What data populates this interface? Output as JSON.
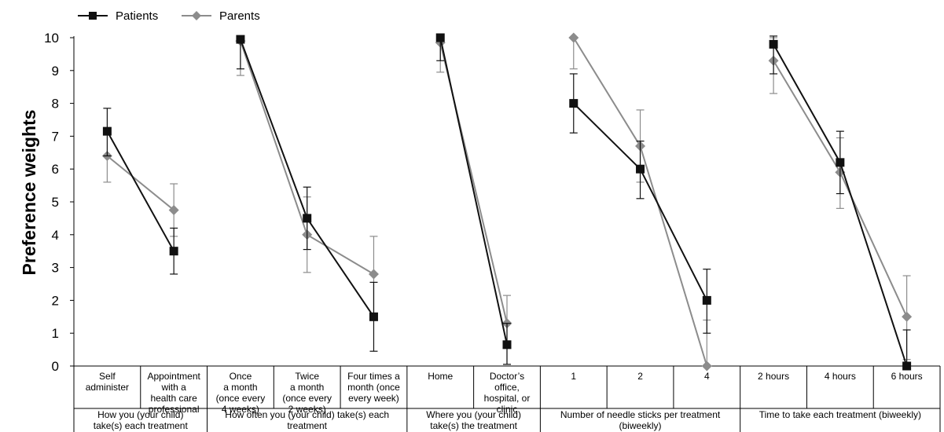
{
  "chart_data": {
    "type": "line",
    "ylabel": "Preference weights",
    "ylim": [
      0,
      10
    ],
    "yticks": [
      "0",
      "1",
      "2",
      "3",
      "4",
      "5",
      "6",
      "7",
      "8",
      "9",
      "10"
    ],
    "legend_position": "top-left",
    "categories": [
      [
        "Self",
        "administer"
      ],
      [
        "Appointment",
        "with a",
        "health care",
        "professional"
      ],
      [
        "Once",
        "a month",
        "(once every",
        "4 weeks)"
      ],
      [
        "Twice",
        "a month",
        "(once every",
        "2 weeks)"
      ],
      [
        "Four times a",
        "month (once",
        "every week)"
      ],
      [
        "Home"
      ],
      [
        "Doctor’s",
        "office,",
        "hospital, or",
        "clinic"
      ],
      [
        "1"
      ],
      [
        "2"
      ],
      [
        "4"
      ],
      [
        "2 hours"
      ],
      [
        "4 hours"
      ],
      [
        "6 hours"
      ]
    ],
    "groups": [
      {
        "label": [
          "How you (your child)",
          "take(s) each treatment"
        ],
        "start": 0,
        "end": 1
      },
      {
        "label": [
          "How often you (your child) take(s) each",
          "treatment"
        ],
        "start": 2,
        "end": 4
      },
      {
        "label": [
          "Where you (your child)",
          "take(s) the treatment"
        ],
        "start": 5,
        "end": 6
      },
      {
        "label": [
          "Number of needle sticks per treatment",
          "(biweekly)"
        ],
        "start": 7,
        "end": 9
      },
      {
        "label": [
          "Time to take each treatment (biweekly)"
        ],
        "start": 10,
        "end": 12
      }
    ],
    "series": [
      {
        "name": "Patients",
        "marker": "square",
        "color": "#111111",
        "values": [
          7.15,
          3.5,
          9.95,
          4.5,
          1.5,
          10.0,
          0.65,
          8.0,
          6.0,
          2.0,
          9.8,
          6.2,
          0.0
        ],
        "error_low": [
          6.4,
          2.8,
          9.05,
          3.55,
          0.45,
          9.3,
          0.05,
          7.1,
          5.1,
          1.0,
          8.9,
          5.25,
          0.0
        ],
        "error_high": [
          7.85,
          4.2,
          9.95,
          5.45,
          2.55,
          10.0,
          1.3,
          8.9,
          6.85,
          2.95,
          10.05,
          7.15,
          1.1
        ]
      },
      {
        "name": "Parents",
        "marker": "diamond",
        "color": "#8c8c8c",
        "values": [
          6.4,
          4.75,
          9.9,
          4.0,
          2.8,
          9.85,
          1.3,
          10.0,
          6.7,
          0.0,
          9.3,
          5.9,
          1.5
        ],
        "error_low": [
          5.6,
          3.95,
          8.85,
          2.85,
          1.6,
          8.95,
          0.05,
          9.05,
          5.6,
          0.0,
          8.3,
          4.8,
          0.2
        ],
        "error_high": [
          6.4,
          5.55,
          9.9,
          5.15,
          3.95,
          9.85,
          2.15,
          10.0,
          7.8,
          1.4,
          10.0,
          6.95,
          2.75
        ]
      }
    ]
  }
}
